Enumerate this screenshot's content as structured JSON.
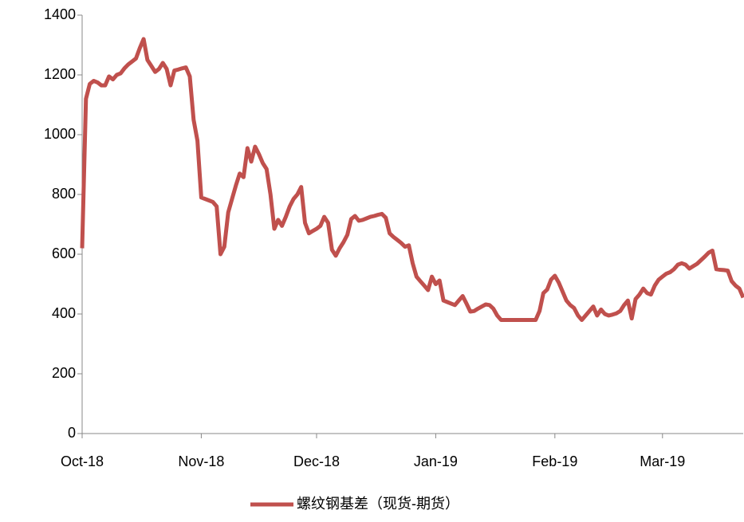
{
  "chart_data": {
    "type": "line",
    "categories": [
      "Oct-18",
      null,
      null,
      null,
      null,
      null,
      null,
      null,
      null,
      null,
      null,
      null,
      null,
      null,
      null,
      null,
      null,
      null,
      null,
      null,
      null,
      null,
      null,
      null,
      null,
      null,
      null,
      null,
      null,
      null,
      null,
      "Nov-18",
      null,
      null,
      null,
      null,
      null,
      null,
      null,
      null,
      null,
      null,
      null,
      null,
      null,
      null,
      null,
      null,
      null,
      null,
      null,
      null,
      null,
      null,
      null,
      null,
      null,
      null,
      null,
      null,
      null,
      "Dec-18",
      null,
      null,
      null,
      null,
      null,
      null,
      null,
      null,
      null,
      null,
      null,
      null,
      null,
      null,
      null,
      null,
      null,
      null,
      null,
      null,
      null,
      null,
      null,
      null,
      null,
      null,
      null,
      null,
      null,
      null,
      "Jan-19",
      null,
      null,
      null,
      null,
      null,
      null,
      null,
      null,
      null,
      null,
      null,
      null,
      null,
      null,
      null,
      null,
      null,
      null,
      null,
      null,
      null,
      null,
      null,
      null,
      null,
      null,
      null,
      null,
      null,
      null,
      "Feb-19",
      null,
      null,
      null,
      null,
      null,
      null,
      null,
      null,
      null,
      null,
      null,
      null,
      null,
      null,
      null,
      null,
      null,
      null,
      null,
      null,
      null,
      null,
      null,
      null,
      null,
      null,
      null,
      "Mar-19",
      null,
      null,
      null,
      null,
      null,
      null,
      null,
      null,
      null,
      null,
      null,
      null,
      null,
      null,
      null,
      null,
      null,
      null,
      null,
      null,
      null
    ],
    "series": [
      {
        "name": "螺纹钢基差（现货-期货）",
        "color": "#c0504d",
        "values": [
          620,
          1120,
          1170,
          1180,
          1175,
          1165,
          1165,
          1195,
          1185,
          1200,
          1205,
          1222,
          1235,
          1245,
          1255,
          1290,
          1320,
          1250,
          1230,
          1210,
          1220,
          1240,
          1220,
          1165,
          1215,
          1218,
          1222,
          1225,
          1195,
          1050,
          980,
          790,
          785,
          780,
          775,
          760,
          600,
          625,
          740,
          785,
          830,
          870,
          858,
          955,
          910,
          960,
          935,
          905,
          885,
          800,
          685,
          715,
          695,
          725,
          760,
          785,
          800,
          825,
          705,
          670,
          678,
          685,
          695,
          725,
          705,
          615,
          595,
          620,
          640,
          665,
          718,
          728,
          712,
          715,
          720,
          725,
          728,
          732,
          735,
          722,
          670,
          658,
          648,
          638,
          625,
          630,
          570,
          525,
          510,
          495,
          480,
          525,
          500,
          512,
          445,
          440,
          435,
          430,
          445,
          460,
          435,
          408,
          410,
          418,
          425,
          432,
          430,
          418,
          395,
          380,
          380,
          380,
          380,
          380,
          380,
          380,
          380,
          380,
          380,
          410,
          470,
          482,
          515,
          528,
          505,
          475,
          445,
          430,
          420,
          395,
          380,
          395,
          410,
          425,
          395,
          415,
          400,
          395,
          398,
          402,
          410,
          430,
          445,
          385,
          450,
          465,
          485,
          470,
          465,
          495,
          515,
          525,
          535,
          540,
          550,
          565,
          570,
          565,
          552,
          560,
          568,
          580,
          592,
          605,
          612,
          550,
          548,
          547,
          545,
          510,
          495,
          485,
          455
        ]
      }
    ],
    "ylim": [
      0,
      1400
    ],
    "yticks": [
      0,
      200,
      400,
      600,
      800,
      1000,
      1200,
      1400
    ],
    "grid": false,
    "legend": "bottom"
  }
}
